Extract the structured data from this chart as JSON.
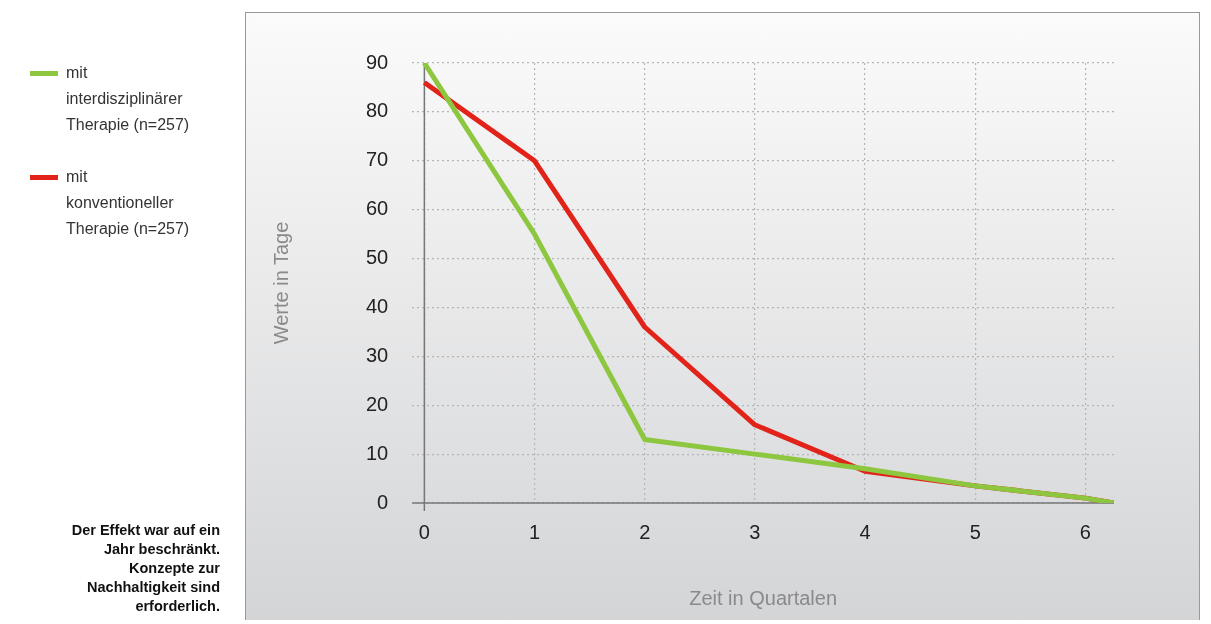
{
  "chart_data": {
    "type": "line",
    "xlabel": "Zeit in Quartalen",
    "ylabel": "Werte in Tage",
    "x": [
      0,
      1,
      2,
      3,
      4,
      5,
      6,
      6.26
    ],
    "series": [
      {
        "name": "mit interdisziplinärer Therapie (n=257)",
        "color": "#8dc63f",
        "values": [
          90,
          55,
          13,
          10,
          7,
          3.5,
          1,
          0
        ]
      },
      {
        "name": "mit konventioneller Therapie (n=257)",
        "color": "#e2231a",
        "values": [
          86,
          70,
          36,
          16,
          6.5,
          3.5,
          1,
          0
        ]
      }
    ],
    "xlim": [
      -0.11,
      6.26
    ],
    "xticks": [
      0,
      1,
      2,
      3,
      4,
      5,
      6
    ],
    "ylim": [
      0,
      90
    ],
    "yticks": [
      0,
      10,
      20,
      30,
      40,
      50,
      60,
      70,
      80,
      90
    ],
    "grid": true,
    "legend": "left",
    "marker": "none",
    "line_style": "solid",
    "annotations": [
      "Der Effekt war auf ein Jahr beschränkt. Konzepte zur Nachhaltigkeit sind erforderlich."
    ]
  }
}
